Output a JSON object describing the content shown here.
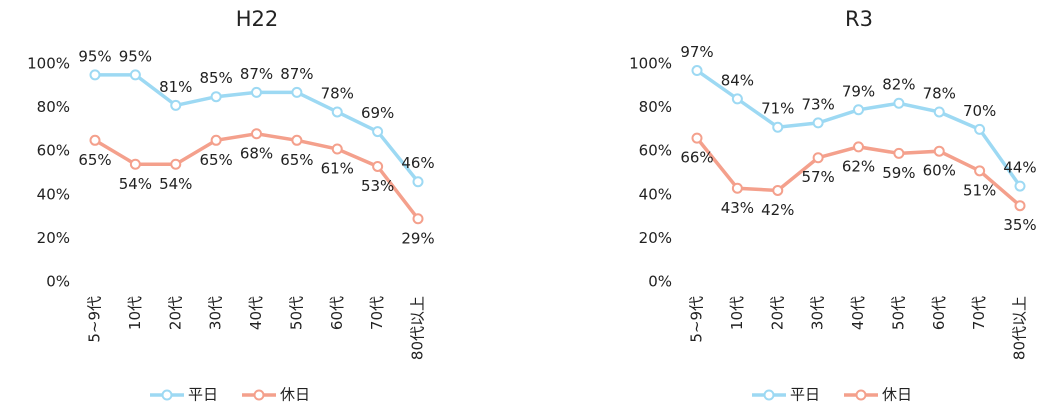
{
  "chart_data": [
    {
      "type": "line",
      "title": "H22",
      "categories": [
        "5~9代",
        "10代",
        "20代",
        "30代",
        "40代",
        "50代",
        "60代",
        "70代",
        "80代以上"
      ],
      "series": [
        {
          "name": "平日",
          "color": "#9dd9f3",
          "values": [
            95,
            95,
            81,
            85,
            87,
            87,
            78,
            69,
            46
          ],
          "value_labels": [
            "95%",
            "95%",
            "81%",
            "85%",
            "87%",
            "87%",
            "78%",
            "69%",
            "46%"
          ]
        },
        {
          "name": "休日",
          "color": "#f4a08c",
          "values": [
            65,
            54,
            54,
            65,
            68,
            65,
            61,
            53,
            29
          ],
          "value_labels": [
            "65%",
            "54%",
            "54%",
            "65%",
            "68%",
            "65%",
            "61%",
            "53%",
            "29%"
          ]
        }
      ],
      "ylim": [
        0,
        100
      ],
      "yticks": [
        {
          "value": 0,
          "label": "0%"
        },
        {
          "value": 20,
          "label": "20%"
        },
        {
          "value": 40,
          "label": "40%"
        },
        {
          "value": 60,
          "label": "60%"
        },
        {
          "value": 80,
          "label": "80%"
        },
        {
          "value": 100,
          "label": "100%"
        }
      ],
      "legend": "bottom"
    },
    {
      "type": "line",
      "title": "R3",
      "categories": [
        "5~9代",
        "10代",
        "20代",
        "30代",
        "40代",
        "50代",
        "60代",
        "70代",
        "80代以上"
      ],
      "series": [
        {
          "name": "平日",
          "color": "#9dd9f3",
          "values": [
            97,
            84,
            71,
            73,
            79,
            82,
            78,
            70,
            44
          ],
          "value_labels": [
            "97%",
            "84%",
            "71%",
            "73%",
            "79%",
            "82%",
            "78%",
            "70%",
            "44%"
          ]
        },
        {
          "name": "休日",
          "color": "#f4a08c",
          "values": [
            66,
            43,
            42,
            57,
            62,
            59,
            60,
            51,
            35
          ],
          "value_labels": [
            "66%",
            "43%",
            "42%",
            "57%",
            "62%",
            "59%",
            "60%",
            "51%",
            "35%"
          ]
        }
      ],
      "ylim": [
        0,
        100
      ],
      "yticks": [
        {
          "value": 0,
          "label": "0%"
        },
        {
          "value": 20,
          "label": "20%"
        },
        {
          "value": 40,
          "label": "40%"
        },
        {
          "value": 60,
          "label": "60%"
        },
        {
          "value": 80,
          "label": "80%"
        },
        {
          "value": 100,
          "label": "100%"
        }
      ],
      "legend": "bottom"
    }
  ]
}
